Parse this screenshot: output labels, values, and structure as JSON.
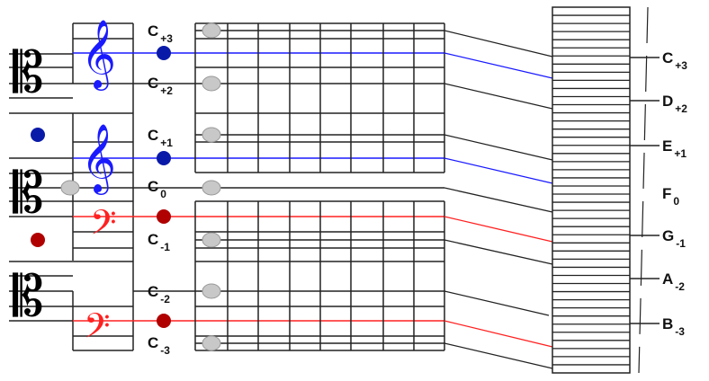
{
  "colors": {
    "treble": "#1a1aff",
    "bass": "#ff2020",
    "blue_dot": "#0a1aa8",
    "red_dot": "#b00000",
    "ball": "#c8c8c8",
    "line": "#222222"
  },
  "clefs": {
    "alto": "𝄡",
    "treble": "𝄞",
    "bass": "𝄢"
  },
  "middle_labels": [
    {
      "letter": "C",
      "sub": "+3"
    },
    {
      "letter": "C",
      "sub": "+2"
    },
    {
      "letter": "C",
      "sub": "+1"
    },
    {
      "letter": "C",
      "sub": "0"
    },
    {
      "letter": "C",
      "sub": "-1"
    },
    {
      "letter": "C",
      "sub": "-2"
    },
    {
      "letter": "C",
      "sub": "-3"
    }
  ],
  "right_labels": [
    {
      "letter": "C",
      "sub": "+3"
    },
    {
      "letter": "D",
      "sub": "+2"
    },
    {
      "letter": "E",
      "sub": "+1"
    },
    {
      "letter": "F",
      "sub": "0"
    },
    {
      "letter": "G",
      "sub": "-1"
    },
    {
      "letter": "A",
      "sub": "-2"
    },
    {
      "letter": "B",
      "sub": "-3"
    }
  ]
}
